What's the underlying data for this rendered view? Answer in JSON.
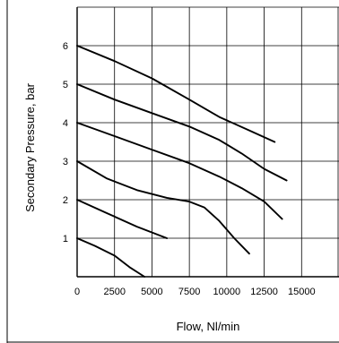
{
  "chart_data": {
    "type": "line",
    "xlabel": "Flow, Nl/min",
    "ylabel": "Secondary Pressure, bar",
    "xlim": [
      0,
      17500
    ],
    "ylim": [
      0,
      7
    ],
    "grid": true,
    "x_ticks": [
      0,
      2500,
      5000,
      7500,
      10000,
      12500,
      15000
    ],
    "x_tick_labels": [
      "0",
      "2500",
      "5000",
      "7500",
      "10000",
      "12500",
      "15000"
    ],
    "y_ticks": [
      1,
      2,
      3,
      4,
      5,
      6
    ],
    "y_tick_labels": [
      "1",
      "2",
      "3",
      "4",
      "5",
      "6"
    ],
    "series": [
      {
        "points": [
          [
            0,
            1.0
          ],
          [
            1200,
            0.8
          ],
          [
            2500,
            0.55
          ],
          [
            3500,
            0.25
          ],
          [
            4500,
            0.0
          ]
        ]
      },
      {
        "points": [
          [
            0,
            2.0
          ],
          [
            2000,
            1.65
          ],
          [
            4000,
            1.3
          ],
          [
            6000,
            1.0
          ]
        ]
      },
      {
        "points": [
          [
            0,
            3.0
          ],
          [
            2000,
            2.55
          ],
          [
            4000,
            2.25
          ],
          [
            6000,
            2.05
          ],
          [
            7500,
            1.95
          ],
          [
            8500,
            1.8
          ],
          [
            9500,
            1.45
          ],
          [
            10500,
            1.0
          ],
          [
            11500,
            0.6
          ]
        ]
      },
      {
        "points": [
          [
            0,
            4.0
          ],
          [
            2500,
            3.65
          ],
          [
            5000,
            3.3
          ],
          [
            7500,
            2.95
          ],
          [
            9500,
            2.6
          ],
          [
            11000,
            2.3
          ],
          [
            12500,
            1.95
          ],
          [
            13700,
            1.5
          ]
        ]
      },
      {
        "points": [
          [
            0,
            5.0
          ],
          [
            2500,
            4.6
          ],
          [
            5000,
            4.25
          ],
          [
            7500,
            3.9
          ],
          [
            9500,
            3.55
          ],
          [
            11000,
            3.2
          ],
          [
            12500,
            2.8
          ],
          [
            14000,
            2.5
          ]
        ]
      },
      {
        "points": [
          [
            0,
            6.0
          ],
          [
            2500,
            5.6
          ],
          [
            5000,
            5.15
          ],
          [
            7500,
            4.6
          ],
          [
            9500,
            4.15
          ],
          [
            11500,
            3.8
          ],
          [
            13200,
            3.5
          ]
        ]
      }
    ]
  }
}
